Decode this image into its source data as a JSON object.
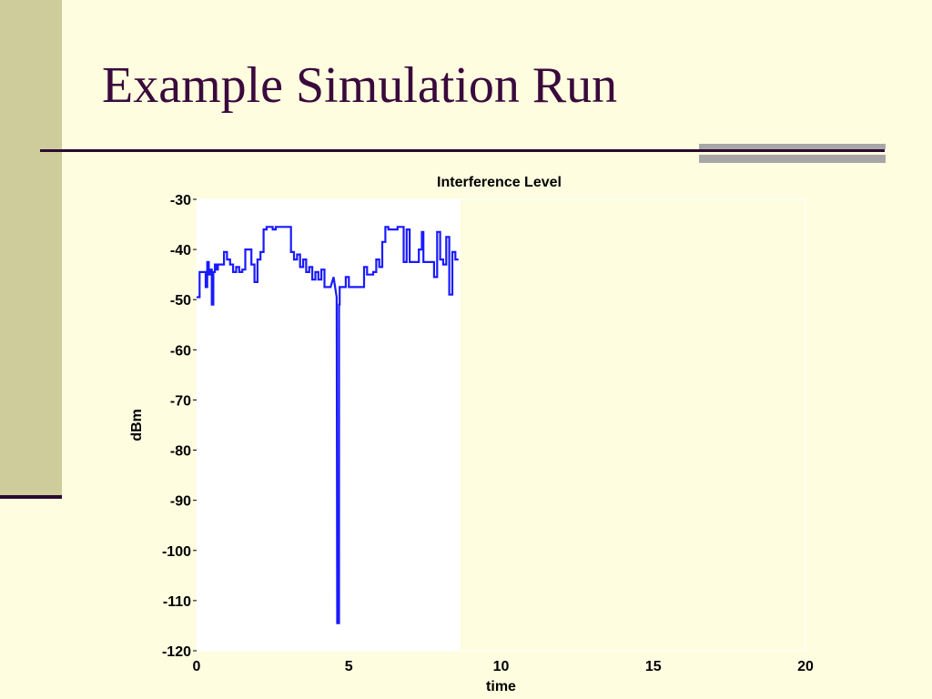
{
  "slide": {
    "title": "Example Simulation Run",
    "colors": {
      "background": "#fefde0",
      "sidebar": "#cfcc9b",
      "rule": "#2a0a30",
      "title": "#3a0a3c",
      "accent_bars": "#a8a7a7"
    }
  },
  "chart_data": {
    "type": "line",
    "title": "Interference Level",
    "xlabel": "time",
    "ylabel": "dBm",
    "xlim": [
      0,
      20
    ],
    "ylim": [
      -120,
      -30
    ],
    "x_ticks": [
      0,
      5,
      10,
      15,
      20
    ],
    "x_tick_labels": [
      "0",
      "5",
      "10",
      "15",
      "20"
    ],
    "y_ticks": [
      -30,
      -40,
      -50,
      -60,
      -70,
      -80,
      -90,
      -100,
      -110,
      -120
    ],
    "y_tick_labels": [
      "-30",
      "-40",
      "-50",
      "-60",
      "-70",
      "-80",
      "-90",
      "-100",
      "-110",
      "-120"
    ],
    "grid": false,
    "visible_x_range": [
      0,
      8.6
    ],
    "series": [
      {
        "color": "#1a1aff",
        "x": [
          0,
          0.1,
          0.1,
          0.3,
          0.3,
          0.35,
          0.35,
          0.4,
          0.4,
          0.45,
          0.45,
          0.5,
          0.5,
          0.55,
          0.55,
          0.6,
          0.6,
          0.65,
          0.65,
          0.7,
          0.7,
          0.9,
          0.9,
          1.0,
          1.0,
          1.1,
          1.1,
          1.2,
          1.2,
          1.3,
          1.3,
          1.4,
          1.4,
          1.5,
          1.5,
          1.6,
          1.6,
          1.8,
          1.8,
          1.9,
          1.9,
          2.0,
          2.0,
          2.1,
          2.1,
          2.2,
          2.2,
          2.3,
          2.3,
          2.5,
          2.5,
          2.6,
          2.6,
          2.7,
          2.7,
          3.1,
          3.1,
          3.2,
          3.2,
          3.3,
          3.3,
          3.4,
          3.4,
          3.5,
          3.5,
          3.6,
          3.6,
          3.7,
          3.7,
          3.8,
          3.8,
          3.9,
          3.9,
          4.0,
          4.0,
          4.1,
          4.1,
          4.2,
          4.2,
          4.4,
          4.4,
          4.5,
          4.5,
          4.6,
          4.6,
          4.62,
          4.62,
          4.68,
          4.68,
          4.7,
          4.7,
          4.9,
          4.9,
          5.0,
          5.0,
          5.2,
          5.2,
          5.5,
          5.5,
          5.6,
          5.6,
          5.8,
          5.8,
          5.9,
          5.9,
          6.0,
          6.0,
          6.1,
          6.1,
          6.2,
          6.2,
          6.3,
          6.3,
          6.6,
          6.6,
          6.8,
          6.8,
          6.9,
          6.9,
          7.0,
          7.0,
          7.3,
          7.3,
          7.4,
          7.4,
          7.45,
          7.45,
          7.8,
          7.8,
          7.9,
          7.9,
          8.0,
          8.0,
          8.1,
          8.1,
          8.2,
          8.2,
          8.3,
          8.3,
          8.4,
          8.4,
          8.5,
          8.5,
          8.6
        ],
        "y": [
          -49.5,
          -49.5,
          -44.5,
          -44.5,
          -47.5,
          -47.5,
          -42.5,
          -42.5,
          -45,
          -45,
          -44,
          -44,
          -51,
          -51,
          -44.5,
          -44.5,
          -43,
          -43,
          -44,
          -44,
          -43,
          -43,
          -40.5,
          -40.5,
          -42,
          -42,
          -43,
          -43,
          -44.5,
          -44.5,
          -43.5,
          -43.5,
          -44.5,
          -44.5,
          -44,
          -44,
          -40,
          -40,
          -43,
          -43,
          -46.5,
          -46.5,
          -42,
          -42,
          -40.5,
          -40.5,
          -36,
          -36,
          -35.5,
          -35.5,
          -36,
          -36,
          -35.5,
          -35.5,
          -35.5,
          -35.5,
          -40.5,
          -40.5,
          -42,
          -42,
          -41,
          -41,
          -43.5,
          -43.5,
          -42,
          -42,
          -44.5,
          -44.5,
          -43.5,
          -43.5,
          -46,
          -46,
          -44.5,
          -44.5,
          -46,
          -46,
          -44,
          -44,
          -47.5,
          -47.5,
          -47.5,
          -45.5,
          -45.5,
          -49.5,
          -49.5,
          -114.5,
          -114.5,
          -114.5,
          -51,
          -51,
          -47.5,
          -47.5,
          -45.5,
          -45.5,
          -47.5,
          -47.5,
          -47.5,
          -47.5,
          -43.5,
          -43.5,
          -45,
          -45,
          -44.5,
          -44.5,
          -42,
          -42,
          -43.5,
          -43.5,
          -38.5,
          -38.5,
          -35.5,
          -35.5,
          -36,
          -36,
          -35.5,
          -35.5,
          -42.5,
          -42.5,
          -36,
          -36,
          -42.5,
          -42.5,
          -40,
          -40,
          -36.5,
          -36.5,
          -42.5,
          -42.5,
          -45.5,
          -45.5,
          -36.5,
          -36.5,
          -42,
          -42,
          -43,
          -43,
          -37.5,
          -37.5,
          -49,
          -49,
          -40.5,
          -40.5,
          -42,
          -42
        ]
      }
    ]
  }
}
